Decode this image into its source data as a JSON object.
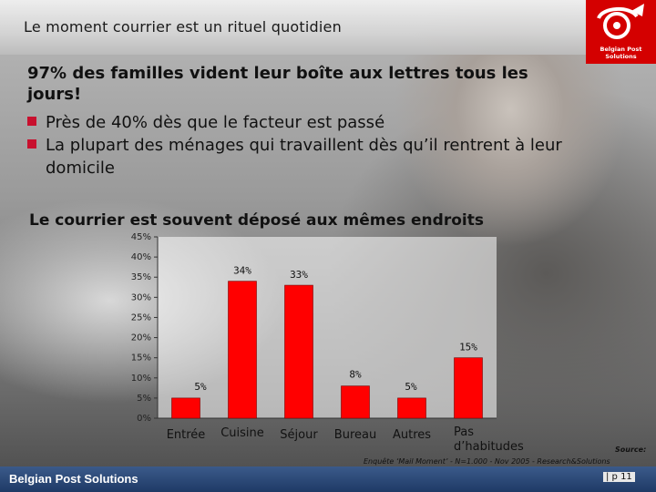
{
  "slide": {
    "title": "Le moment courrier est un rituel quotidien",
    "heading": "97% des familles vident leur boîte aux lettres tous les jours!",
    "bullets": [
      "Près de 40% dès que le facteur est passé",
      "La plupart des ménages qui travaillent dès qu’il rentrent à leur domicile"
    ],
    "subheading": "Le courrier est souvent déposé aux mêmes endroits"
  },
  "brand": {
    "logo_text": "Belgian Post Solutions",
    "footer_text": "Belgian Post Solutions",
    "accent_color": "#c8102e",
    "footer_color": "#1f3a66"
  },
  "source": {
    "label": "Source:",
    "text": "Enquête ‘Mail Moment’ - N=1.000 - Nov 2005 - Research&Solutions"
  },
  "page": {
    "number": "| p 11"
  },
  "chart_data": {
    "type": "bar",
    "categories": [
      "Entrée",
      "Cuisine",
      "Séjour",
      "Bureau",
      "Autres",
      "Pas d’habitudes"
    ],
    "values": [
      5,
      34,
      33,
      8,
      5,
      15
    ],
    "value_labels": [
      "5%",
      "34%",
      "33%",
      "8%",
      "5%",
      "15%"
    ],
    "ylim": [
      0,
      45
    ],
    "yticks": [
      "0%",
      "5%",
      "10%",
      "15%",
      "20%",
      "25%",
      "30%",
      "35%",
      "40%",
      "45%"
    ],
    "bar_color": "#ff0000",
    "grid": false,
    "xlabel": "",
    "ylabel": ""
  }
}
